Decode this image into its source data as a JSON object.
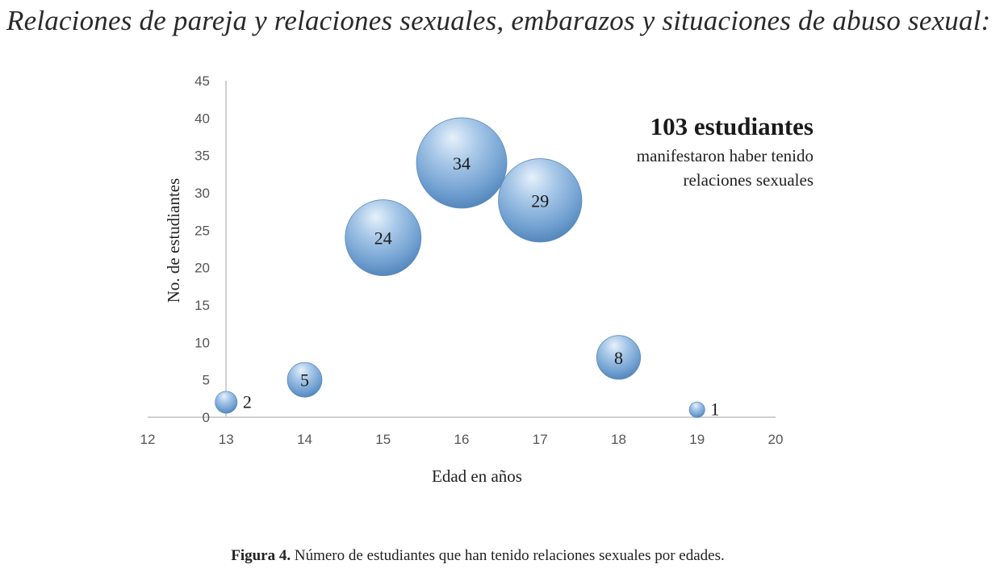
{
  "page": {
    "heading": "Relaciones de pareja y relaciones sexuales, embarazos y situaciones de abuso sexual:",
    "caption_label": "Figura 4.",
    "caption_text": "Número de estudiantes que han tenido relaciones sexuales por edades."
  },
  "chart_data": {
    "type": "bubble",
    "xlabel": "Edad en años",
    "ylabel": "No. de estudiantes",
    "xlim": [
      12,
      20
    ],
    "ylim": [
      0,
      45
    ],
    "x_ticks": [
      12,
      13,
      14,
      15,
      16,
      17,
      18,
      19,
      20
    ],
    "y_ticks": [
      0,
      5,
      10,
      15,
      20,
      25,
      30,
      35,
      40,
      45
    ],
    "grid": false,
    "points": [
      {
        "x": 13,
        "y": 2,
        "size": 2,
        "label": "2"
      },
      {
        "x": 14,
        "y": 5,
        "size": 5,
        "label": "5"
      },
      {
        "x": 15,
        "y": 24,
        "size": 24,
        "label": "24"
      },
      {
        "x": 16,
        "y": 34,
        "size": 34,
        "label": "34"
      },
      {
        "x": 17,
        "y": 29,
        "size": 29,
        "label": "29"
      },
      {
        "x": 18,
        "y": 8,
        "size": 8,
        "label": "8"
      },
      {
        "x": 19,
        "y": 1,
        "size": 1,
        "label": "1"
      }
    ],
    "bubble_color": "#6f9fd0",
    "annotation": {
      "headline": "103 estudiantes",
      "line1": "manifestaron haber tenido",
      "line2": "relaciones sexuales"
    }
  }
}
